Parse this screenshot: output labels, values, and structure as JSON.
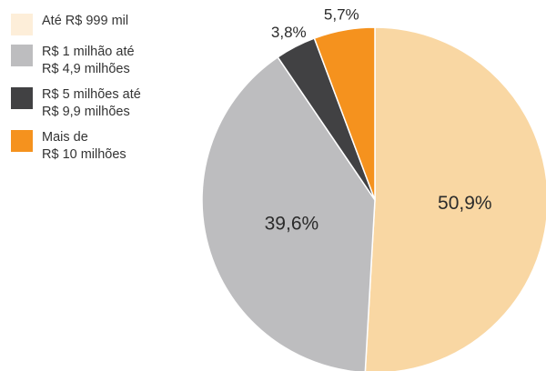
{
  "chart_data": {
    "type": "pie",
    "categories": [
      "Até R$ 999 mil",
      "R$ 1 milhão até\nR$ 4,9 milhões",
      "R$ 5 milhões até\nR$ 9,9 milhões",
      "Mais de\nR$ 10 milhões"
    ],
    "values": [
      50.9,
      39.6,
      3.8,
      5.7
    ],
    "labels": [
      "50,9%",
      "39,6%",
      "3,8%",
      "5,7%"
    ],
    "colors": [
      "#f9d7a3",
      "#bdbdbf",
      "#414143",
      "#f5921e"
    ],
    "legend_colors": [
      "#fdeed9",
      "#bdbdbf",
      "#414143",
      "#f5921e"
    ],
    "legend_position": "left"
  }
}
